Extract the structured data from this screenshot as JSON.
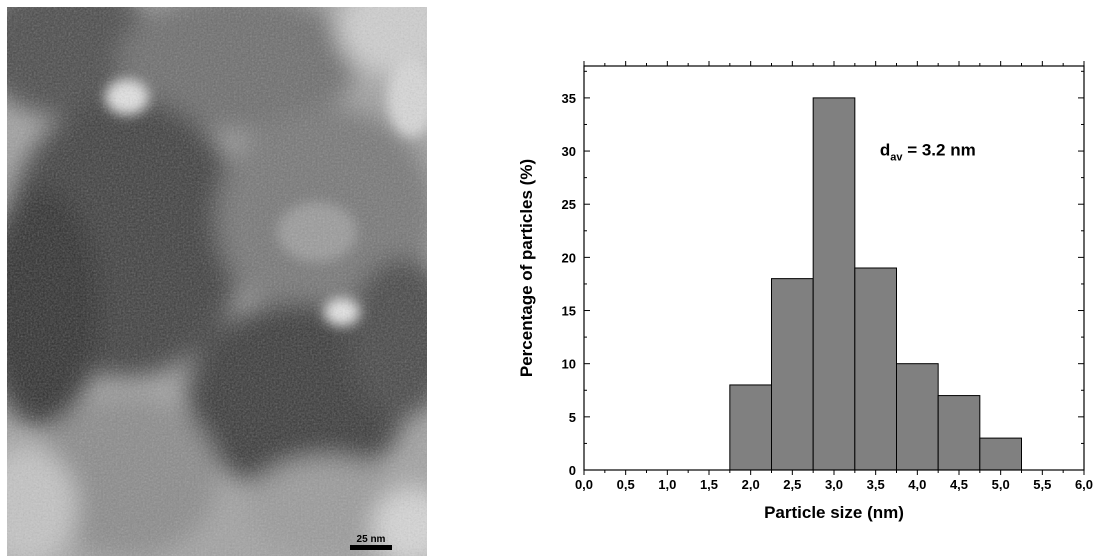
{
  "micrograph": {
    "scale_bar_label": "25 nm"
  },
  "chart_data": {
    "type": "bar",
    "x": [
      2.0,
      2.5,
      3.0,
      3.5,
      4.0,
      4.5,
      5.0
    ],
    "values": [
      8,
      18,
      35,
      19,
      10,
      7,
      3
    ],
    "bin_width": 0.5,
    "xlabel": "Particle size (nm)",
    "ylabel": "Percentage of particles (%)",
    "xlim": [
      0.0,
      6.0
    ],
    "ylim": [
      0,
      38
    ],
    "x_ticks": [
      0.0,
      0.5,
      1.0,
      1.5,
      2.0,
      2.5,
      3.0,
      3.5,
      4.0,
      4.5,
      5.0,
      5.5,
      6.0
    ],
    "x_tick_labels": [
      "0,0",
      "0,5",
      "1,0",
      "1,5",
      "2,0",
      "2,5",
      "3,0",
      "3,5",
      "4,0",
      "4,5",
      "5,0",
      "5,5",
      "6,0"
    ],
    "y_ticks": [
      0,
      5,
      10,
      15,
      20,
      25,
      30,
      35
    ],
    "y_tick_labels": [
      "0",
      "5",
      "10",
      "15",
      "20",
      "25",
      "30",
      "35"
    ],
    "annotation": {
      "main": "d",
      "sub": "av",
      "rest": " = 3.2 nm"
    },
    "bar_color": "#808080",
    "grid": false,
    "legend": "none"
  }
}
